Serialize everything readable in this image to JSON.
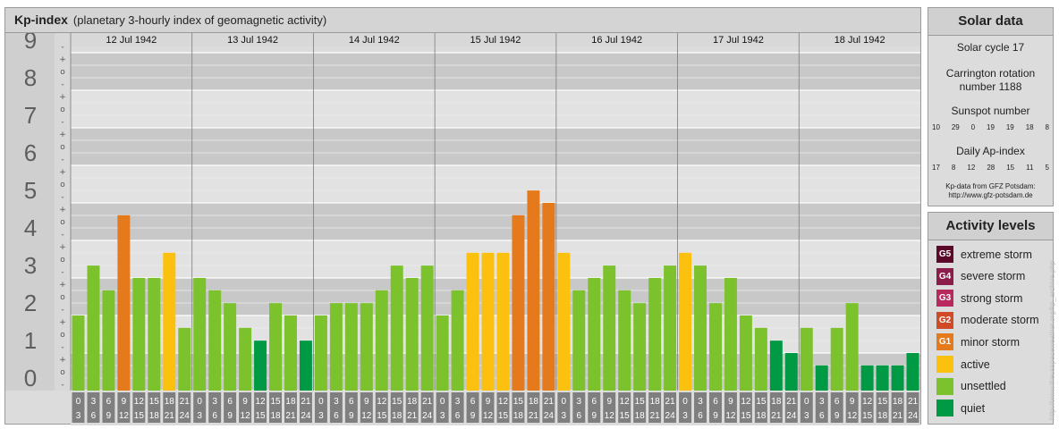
{
  "header": {
    "title": "Kp-index",
    "subtitle": "(planetary 3-hourly index of geomagnetic activity)"
  },
  "chart_data": {
    "type": "bar",
    "title": "Kp-index",
    "subtitle": "(planetary 3-hourly index of geomagnetic activity)",
    "ylim": [
      0,
      9
    ],
    "y_ticks": [
      "0",
      "1",
      "2",
      "3",
      "4",
      "5",
      "6",
      "7",
      "8",
      "9"
    ],
    "sub_ticks": [
      "-",
      "o",
      "+"
    ],
    "days": [
      "12 Jul 1942",
      "13 Jul 1942",
      "14 Jul 1942",
      "15 Jul 1942",
      "16 Jul 1942",
      "17 Jul 1942",
      "18 Jul 1942"
    ],
    "interval_start": [
      "0",
      "3",
      "6",
      "9",
      "12",
      "15",
      "18",
      "21"
    ],
    "interval_end": [
      "3",
      "6",
      "9",
      "12",
      "15",
      "18",
      "21",
      "24"
    ],
    "values": [
      2,
      3.33,
      2.67,
      4.67,
      3,
      3,
      3.67,
      1.67,
      3,
      2.67,
      2.33,
      1.67,
      1.33,
      2.33,
      2,
      1.33,
      2,
      2.33,
      2.33,
      2.33,
      2.67,
      3.33,
      3,
      3.33,
      2,
      2.67,
      3.67,
      3.67,
      3.67,
      4.67,
      5.33,
      5,
      3.67,
      2.67,
      3,
      3.33,
      2.67,
      2.33,
      3,
      3.33,
      3.67,
      3.33,
      2.33,
      3,
      2,
      1.67,
      1.33,
      1,
      1.67,
      0.67,
      1.67,
      2.33,
      0.67,
      0.67,
      0.67,
      1
    ],
    "grid": true
  },
  "colors": {
    "quiet": "#009944",
    "unsettled": "#7cc22d",
    "active": "#fbc10e",
    "minor": "#e57a1c",
    "moderate": "#d14a28",
    "strong": "#b82a5e",
    "severe": "#8c1c4a",
    "extreme": "#5c0a2a"
  },
  "solar": {
    "title": "Solar data",
    "cycle": "Solar cycle 17",
    "carrington_1": "Carrington rotation",
    "carrington_2": "number 1188",
    "sunspot_label": "Sunspot number",
    "sunspot": [
      "10",
      "29",
      "0",
      "19",
      "19",
      "18",
      "8"
    ],
    "ap_label": "Daily Ap-index",
    "ap": [
      "17",
      "8",
      "12",
      "28",
      "15",
      "11",
      "5"
    ],
    "source_1": "Kp-data from GFZ Potsdam:",
    "source_2": "http://www.gfz-potsdam.de"
  },
  "levels": {
    "title": "Activity levels",
    "items": [
      {
        "code": "G5",
        "label": "extreme storm",
        "color": "#5c0a2a"
      },
      {
        "code": "G4",
        "label": "severe storm",
        "color": "#8c1c4a"
      },
      {
        "code": "G3",
        "label": "strong storm",
        "color": "#b82a5e"
      },
      {
        "code": "G2",
        "label": "moderate storm",
        "color": "#d14a28"
      },
      {
        "code": "G1",
        "label": "minor storm",
        "color": "#e57a1c"
      },
      {
        "code": "",
        "label": "active",
        "color": "#fbc10e"
      },
      {
        "code": "",
        "label": "unsettled",
        "color": "#7cc22d"
      },
      {
        "code": "",
        "label": "quiet",
        "color": "#009944"
      }
    ]
  },
  "watermark": "http://www.theusspaceweather.org/kp_archive.php"
}
